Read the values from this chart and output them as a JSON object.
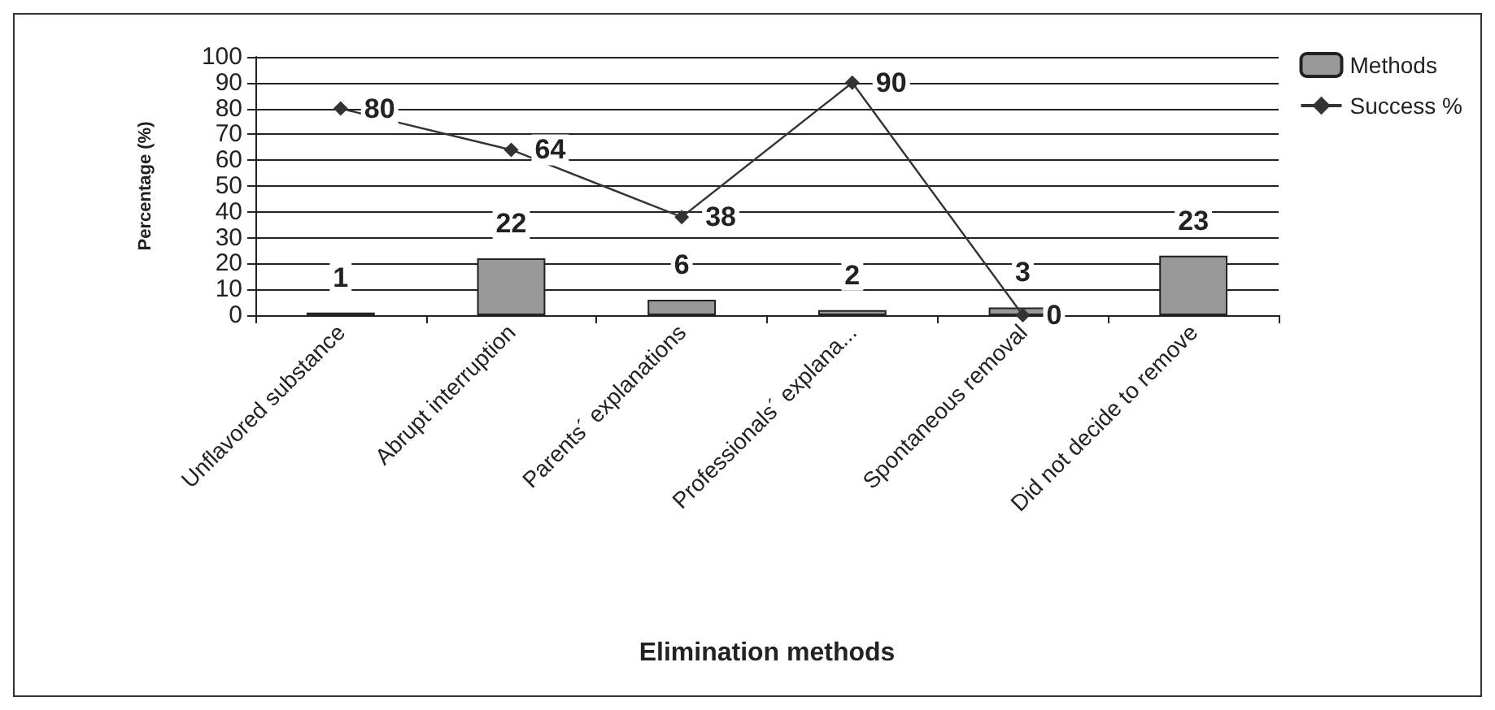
{
  "chart_data": {
    "type": "bar",
    "xlabel": "Elimination methods",
    "ylabel": "Percentage (%)",
    "categories": [
      "Unflavored substance",
      "Abrupt interruption",
      "Parents´ explanations",
      "Professionals´ explana...",
      "Spontaneous removal",
      "Did not decide to remove"
    ],
    "series": [
      {
        "name": "Methods",
        "color": "#999999",
        "values": [
          1,
          22,
          6,
          2,
          3,
          23
        ]
      },
      {
        "name": "Success %",
        "type": "line",
        "color": "#333333",
        "marker": "diamond",
        "values": [
          80,
          64,
          38,
          90,
          0,
          null
        ]
      }
    ],
    "ylim": [
      0,
      100
    ],
    "yticks": [
      0,
      10,
      20,
      30,
      40,
      50,
      60,
      70,
      80,
      90,
      100
    ],
    "grid": "y",
    "legend": "top right",
    "data_labels": true
  }
}
